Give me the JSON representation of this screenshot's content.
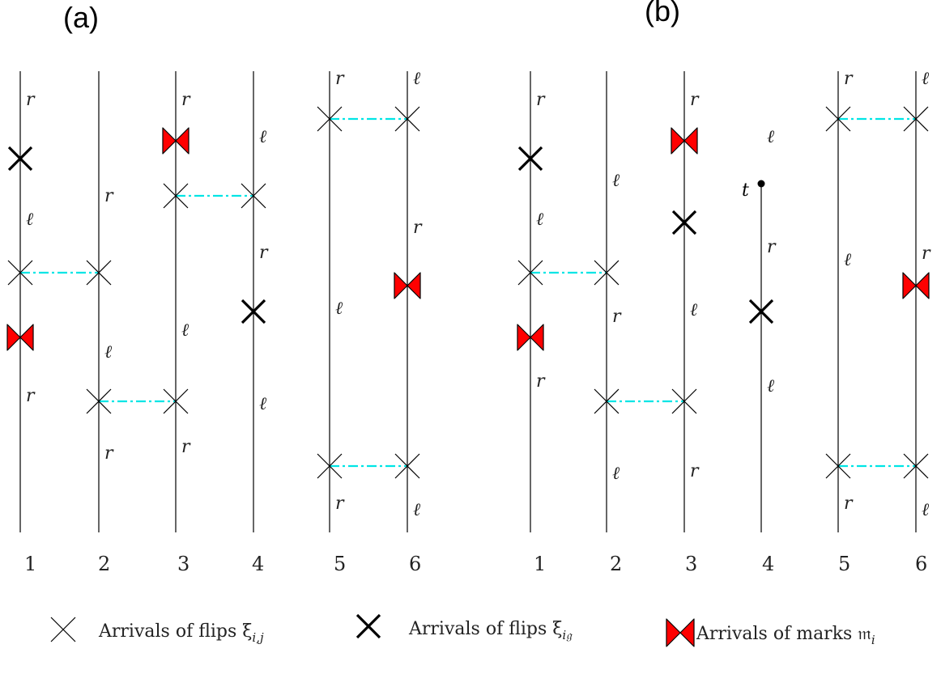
{
  "panels": [
    {
      "title": "(a)",
      "line_numbers": [
        "1",
        "2",
        "3",
        "4",
        "5",
        "6"
      ]
    },
    {
      "title": "(b)",
      "line_numbers": [
        "1",
        "2",
        "3",
        "4",
        "5",
        "6"
      ],
      "marked_time_label": "t"
    }
  ],
  "legend": {
    "thin_cross": "Arrivals of flips ξ",
    "thin_cross_sub": "i,j",
    "thick_cross": "Arrivals of flips ξ",
    "thick_cross_sub": "i𝔤",
    "marks": "Arrivals of marks 𝔪",
    "marks_sub": "i"
  },
  "label_letters": {
    "r": "r",
    "l": "ℓ"
  },
  "colors": {
    "line": "#000000",
    "pair_link": "#00e5e5",
    "mark_fill": "#ff0000",
    "mark_stroke": "#000000"
  },
  "icons": {
    "thin_cross": "thin-x-icon",
    "thick_cross": "thick-x-icon",
    "mark": "bowtie-mark-icon"
  }
}
